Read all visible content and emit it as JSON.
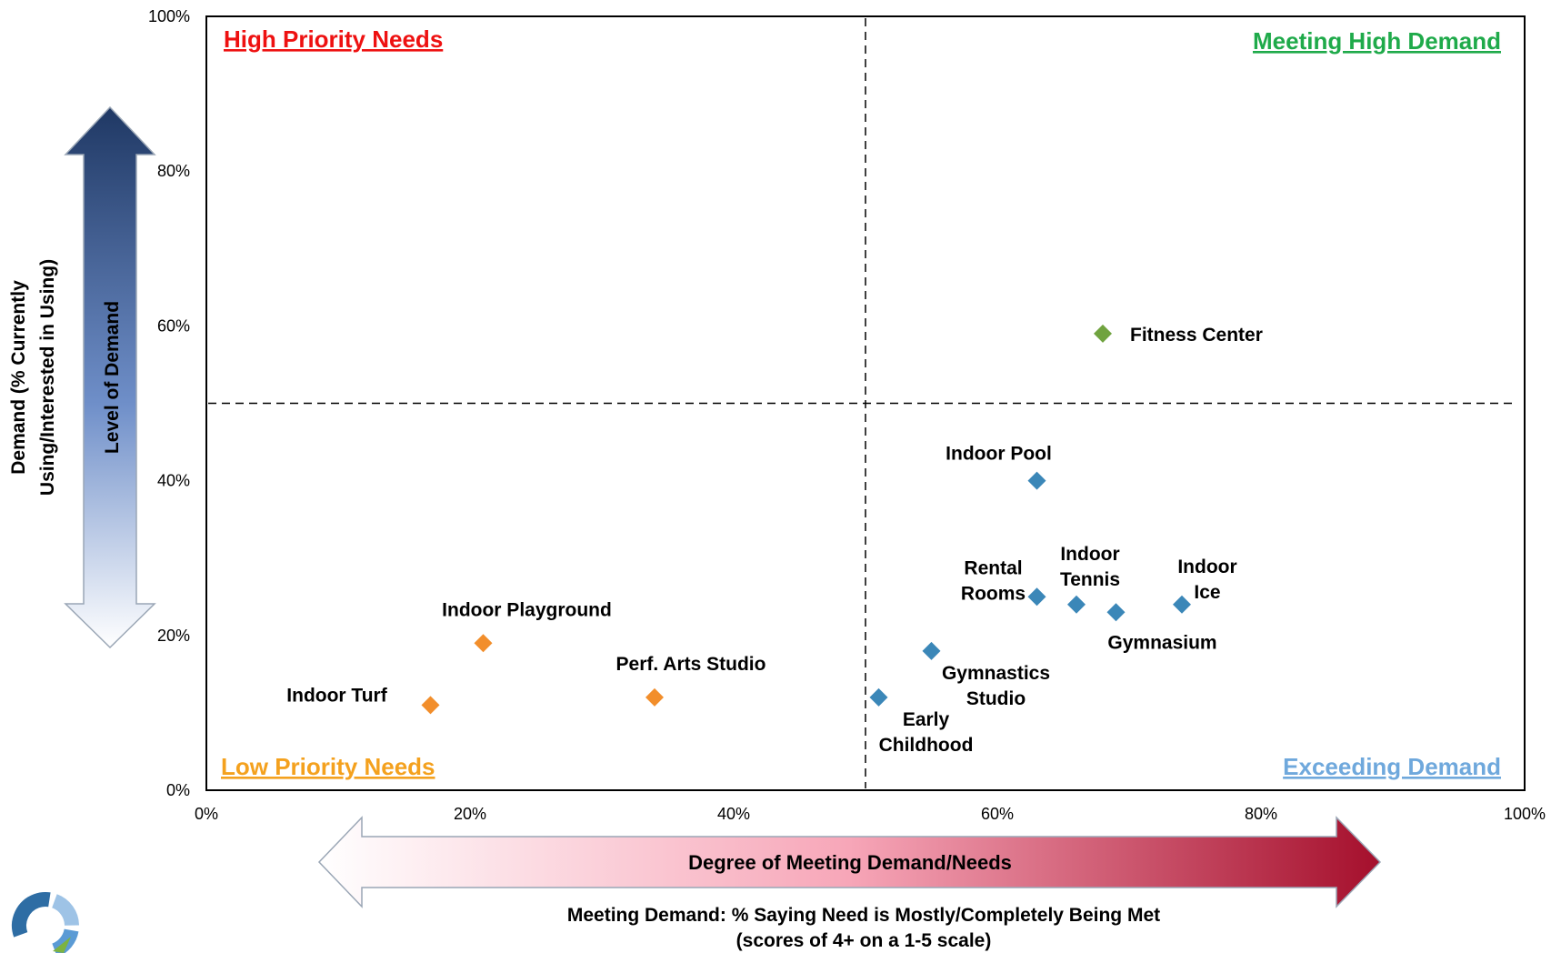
{
  "chart_data": {
    "type": "scatter",
    "xlabel_arrow": "Degree of Meeting Demand/Needs",
    "xlabel_line1": "Meeting Demand:  % Saying Need is Mostly/Completely Being Met",
    "xlabel_line2": "(scores of 4+ on a 1-5 scale)",
    "ylabel_line1": "Demand (% Currently",
    "ylabel_line2": "Using/Interested in Using)",
    "ylabel_arrow": "Level of Demand",
    "xlim": [
      0,
      100
    ],
    "ylim": [
      0,
      100
    ],
    "x_ticks": [
      "0%",
      "20%",
      "40%",
      "60%",
      "80%",
      "100%"
    ],
    "y_ticks": [
      "0%",
      "20%",
      "40%",
      "60%",
      "80%",
      "100%"
    ],
    "x_tick_values": [
      0,
      20,
      40,
      60,
      80,
      100
    ],
    "y_tick_values": [
      0,
      20,
      40,
      60,
      80,
      100
    ],
    "divider_x": 50,
    "divider_y": 50,
    "quadrants": {
      "top_left": {
        "label": "High Priority Needs",
        "color": "#ee1111"
      },
      "top_right": {
        "label": "Meeting High Demand",
        "color": "#1faa4a"
      },
      "bottom_left": {
        "label": "Low Priority Needs",
        "color": "#f4a11e"
      },
      "bottom_right": {
        "label": "Exceeding  Demand",
        "color": "#6fa8dc"
      }
    },
    "colors": {
      "green": "#70a33f",
      "orange": "#f28e2b",
      "blue": "#3b87b8"
    },
    "points": [
      {
        "label": [
          "Fitness Center"
        ],
        "x": 68,
        "y": 59,
        "color": "green"
      },
      {
        "label": [
          "Indoor Pool"
        ],
        "x": 63,
        "y": 40,
        "color": "blue"
      },
      {
        "label": [
          "Rental",
          "Rooms"
        ],
        "x": 63,
        "y": 25,
        "color": "blue"
      },
      {
        "label": [
          "Indoor",
          "Tennis"
        ],
        "x": 66,
        "y": 24,
        "color": "blue"
      },
      {
        "label": [
          "Gymnasium"
        ],
        "x": 69,
        "y": 23,
        "color": "blue"
      },
      {
        "label": [
          "Indoor",
          "Ice"
        ],
        "x": 74,
        "y": 24,
        "color": "blue"
      },
      {
        "label": [
          "Gymnastics",
          "Studio"
        ],
        "x": 55,
        "y": 18,
        "color": "blue"
      },
      {
        "label": [
          "Early",
          "Childhood"
        ],
        "x": 51,
        "y": 12,
        "color": "blue"
      },
      {
        "label": [
          "Indoor Playground"
        ],
        "x": 21,
        "y": 19,
        "color": "orange"
      },
      {
        "label": [
          "Perf. Arts Studio"
        ],
        "x": 34,
        "y": 12,
        "color": "orange"
      },
      {
        "label": [
          "Indoor Turf"
        ],
        "x": 17,
        "y": 11,
        "color": "orange"
      }
    ]
  },
  "logo": {
    "colors": [
      "#2e6da4",
      "#9ec3e6",
      "#5b9bd5",
      "#7cb342"
    ]
  }
}
